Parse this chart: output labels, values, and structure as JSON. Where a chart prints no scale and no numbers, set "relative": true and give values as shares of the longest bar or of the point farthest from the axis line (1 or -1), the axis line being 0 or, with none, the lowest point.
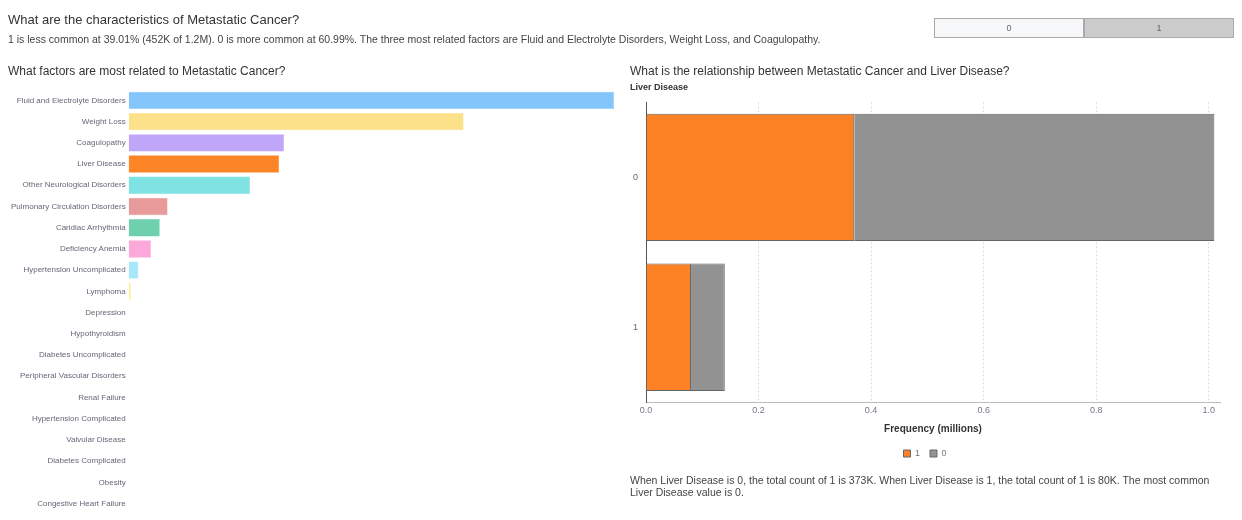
{
  "chart_data": [
    {
      "type": "other",
      "title": "What are the characteristics of Metastatic Cancer?",
      "subtitle": "1 is less common at 39.01% (452K of 1.2M). 0 is more common at 60.99%. The three most related factors are Fluid and Electrolyte Disorders, Weight Loss, and Coagulopathy.",
      "annotations": [
        "0",
        "1"
      ]
    },
    {
      "type": "bar",
      "title": "What factors are most related to Metastatic Cancer?",
      "orientation": "horizontal",
      "relative": true,
      "categories": [
        "Fluid and Electrolyte Disorders",
        "Weight Loss",
        "Coagulopathy",
        "Liver Disease",
        "Other Neurological Disorders",
        "Pulmonary Circulation Disorders",
        "Caridiac Arrhythmia",
        "Deficiency Anemia",
        "Hypertension Uncomplicated",
        "Lymphoma",
        "Depression",
        "Hypothyroidism",
        "Diabetes Uncomplicated",
        "Peripheral Vascular Disorders",
        "Renal Failure",
        "Hypertension Complicated",
        "Valvular Disease",
        "Diabetes Complicated",
        "Obesity",
        "Congestive Heart Failure"
      ],
      "values": [
        1,
        0.69,
        0.32,
        0.31,
        0.25,
        0.08,
        0.064,
        0.046,
        0.02,
        0.004,
        0,
        0,
        0,
        0,
        0,
        0,
        0,
        0,
        0,
        0
      ],
      "colors": [
        "#84c5fc",
        "#fde08a",
        "#bfa6f8",
        "#fd8526",
        "#7fe3e3",
        "#e89a9a",
        "#6fd0ae",
        "#fda8da",
        "#a9e8fb",
        "#fbf08c",
        "#cccccc",
        "#cccccc",
        "#cccccc",
        "#cccccc",
        "#cccccc",
        "#cccccc",
        "#cccccc",
        "#cccccc",
        "#cccccc",
        "#cccccc"
      ],
      "grid": false,
      "legend": false
    },
    {
      "type": "bar",
      "title": "What is the relationship between Metastatic Cancer and Liver Disease?",
      "ylabel": "Liver Disease",
      "xlabel": "Frequency (millions)",
      "orientation": "horizontal",
      "stacked": true,
      "categories": [
        "0",
        "1"
      ],
      "series": [
        {
          "name": "1",
          "color": "#fd8226",
          "values": [
            0.37,
            0.08
          ]
        },
        {
          "name": "0",
          "color": "#929292",
          "values": [
            0.64,
            0.06
          ]
        }
      ],
      "xlim": [
        0,
        1.02
      ],
      "xticks": [
        {
          "value": 0,
          "label": "0.0"
        },
        0.2,
        0.4,
        0.6,
        0.8,
        {
          "value": 1,
          "label": "1.0"
        }
      ],
      "grid": "x",
      "legend": "bottom",
      "annotations": [
        "When Liver Disease is 0, the total count of 1 is 373K. When Liver Disease is 1, the total count of 1 is 80K. The most common Liver Disease value is 0."
      ]
    }
  ]
}
